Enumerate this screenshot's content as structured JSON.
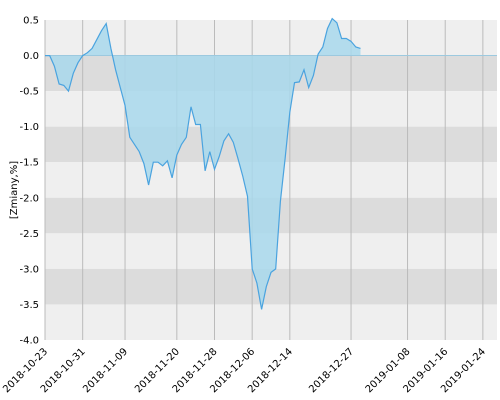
{
  "chart_data": {
    "type": "area",
    "ylabel": "[Zmiany,%]",
    "xlabel": "",
    "ylim": [
      -4.0,
      0.5
    ],
    "xlim": [
      "2018-10-23",
      "2019-01-27"
    ],
    "grid": true,
    "y_ticks": [
      0.5,
      0.0,
      -0.5,
      -1.0,
      -1.5,
      -2.0,
      -2.5,
      -3.0,
      -3.5,
      -4.0
    ],
    "y_tick_labels": [
      "0.5",
      "0.0",
      "-0.5",
      "-1.0",
      "-1.5",
      "-2.0",
      "-2.5",
      "-3.0",
      "-3.5",
      "-4.0"
    ],
    "x_ticks": [
      "2018-10-23",
      "2018-10-31",
      "2018-11-09",
      "2018-11-20",
      "2018-11-28",
      "2018-12-06",
      "2018-12-14",
      "2018-12-27",
      "2019-01-08",
      "2019-01-16",
      "2019-01-24"
    ],
    "x_tick_labels": [
      "2018-10-23",
      "2018-10-31",
      "2018-11-09",
      "2018-11-20",
      "2018-11-28",
      "2018-12-06",
      "2018-12-14",
      "2018-12-27",
      "2019-01-08",
      "2019-01-16",
      "2019-01-24"
    ],
    "colors": {
      "fill": "#a8d8ec",
      "line": "#4aa3df",
      "band_light": "#efefef",
      "band_dark": "#dcdcdc",
      "zero_line": "#9cc9df",
      "vgrid": "#bbbbbb"
    },
    "series": [
      {
        "values": [
          [
            "2018-10-23",
            0.0
          ],
          [
            "2018-10-24",
            0.0
          ],
          [
            "2018-10-25",
            -0.15
          ],
          [
            "2018-10-26",
            -0.4
          ],
          [
            "2018-10-27",
            -0.42
          ],
          [
            "2018-10-28",
            -0.5
          ],
          [
            "2018-10-29",
            -0.25
          ],
          [
            "2018-10-30",
            -0.1
          ],
          [
            "2018-10-31",
            0.0
          ],
          [
            "2018-11-01",
            0.04
          ],
          [
            "2018-11-02",
            0.1
          ],
          [
            "2018-11-04",
            0.35
          ],
          [
            "2018-11-05",
            0.45
          ],
          [
            "2018-11-06",
            0.1
          ],
          [
            "2018-11-07",
            -0.2
          ],
          [
            "2018-11-08",
            -0.45
          ],
          [
            "2018-11-09",
            -0.7
          ],
          [
            "2018-11-10",
            -1.15
          ],
          [
            "2018-11-11",
            -1.25
          ],
          [
            "2018-11-12",
            -1.35
          ],
          [
            "2018-11-13",
            -1.52
          ],
          [
            "2018-11-14",
            -1.82
          ],
          [
            "2018-11-15",
            -1.5
          ],
          [
            "2018-11-16",
            -1.5
          ],
          [
            "2018-11-17",
            -1.55
          ],
          [
            "2018-11-18",
            -1.48
          ],
          [
            "2018-11-19",
            -1.72
          ],
          [
            "2018-11-20",
            -1.4
          ],
          [
            "2018-11-21",
            -1.25
          ],
          [
            "2018-11-22",
            -1.15
          ],
          [
            "2018-11-23",
            -0.72
          ],
          [
            "2018-11-24",
            -0.97
          ],
          [
            "2018-11-25",
            -0.97
          ],
          [
            "2018-11-26",
            -1.62
          ],
          [
            "2018-11-27",
            -1.35
          ],
          [
            "2018-11-28",
            -1.6
          ],
          [
            "2018-11-29",
            -1.42
          ],
          [
            "2018-11-30",
            -1.2
          ],
          [
            "2018-12-01",
            -1.1
          ],
          [
            "2018-12-02",
            -1.22
          ],
          [
            "2018-12-03",
            -1.45
          ],
          [
            "2018-12-04",
            -1.7
          ],
          [
            "2018-12-05",
            -1.98
          ],
          [
            "2018-12-06",
            -3.0
          ],
          [
            "2018-12-07",
            -3.2
          ],
          [
            "2018-12-08",
            -3.57
          ],
          [
            "2018-12-09",
            -3.25
          ],
          [
            "2018-12-10",
            -3.05
          ],
          [
            "2018-12-11",
            -3.0
          ],
          [
            "2018-12-12",
            -2.05
          ],
          [
            "2018-12-13",
            -1.45
          ],
          [
            "2018-12-14",
            -0.8
          ],
          [
            "2018-12-15",
            -0.38
          ],
          [
            "2018-12-16",
            -0.37
          ],
          [
            "2018-12-17",
            -0.2
          ],
          [
            "2018-12-18",
            -0.45
          ],
          [
            "2018-12-19",
            -0.28
          ],
          [
            "2018-12-20",
            0.02
          ],
          [
            "2018-12-21",
            0.12
          ],
          [
            "2018-12-22",
            0.38
          ],
          [
            "2018-12-23",
            0.52
          ],
          [
            "2018-12-24",
            0.46
          ],
          [
            "2018-12-25",
            0.24
          ],
          [
            "2018-12-26",
            0.24
          ],
          [
            "2018-12-27",
            0.2
          ],
          [
            "2018-12-28",
            0.12
          ],
          [
            "2018-12-29",
            0.1
          ]
        ]
      }
    ]
  }
}
